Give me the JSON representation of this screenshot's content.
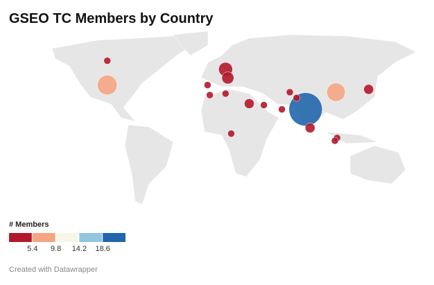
{
  "chart_data": {
    "type": "symbol-map",
    "title": "GSEO TC Members by Country",
    "points": [
      {
        "lon": -98,
        "lat": 56,
        "value": 1
      },
      {
        "lon": -98,
        "lat": 39,
        "value": 8
      },
      {
        "lon": 7,
        "lat": 50,
        "value": 4
      },
      {
        "lon": 9,
        "lat": 44,
        "value": 3
      },
      {
        "lon": -9,
        "lat": 39,
        "value": 1
      },
      {
        "lon": -7,
        "lat": 32,
        "value": 1
      },
      {
        "lon": 7,
        "lat": 33,
        "value": 1
      },
      {
        "lon": 28,
        "lat": 26,
        "value": 2
      },
      {
        "lon": 41,
        "lat": 25,
        "value": 1
      },
      {
        "lon": 57,
        "lat": 22,
        "value": 1
      },
      {
        "lon": 64,
        "lat": 34,
        "value": 1
      },
      {
        "lon": 70,
        "lat": 30,
        "value": 1
      },
      {
        "lon": 78,
        "lat": 22,
        "value": 23
      },
      {
        "lon": 105,
        "lat": 34,
        "value": 7
      },
      {
        "lon": 134,
        "lat": 36,
        "value": 2
      },
      {
        "lon": 82,
        "lat": 9,
        "value": 2
      },
      {
        "lon": 12,
        "lat": 5,
        "value": 1
      },
      {
        "lon": 106,
        "lat": 2,
        "value": 1
      },
      {
        "lon": 104,
        "lat": 0,
        "value": 1
      }
    ],
    "legend": {
      "title": "# Members",
      "colors": [
        "#b2182b",
        "#f4a582",
        "#f7f7e9",
        "#92c5de",
        "#2166ac"
      ],
      "ticks": [
        5.4,
        9.8,
        14.2,
        18.6
      ]
    },
    "footer": "Created with Datawrapper"
  }
}
